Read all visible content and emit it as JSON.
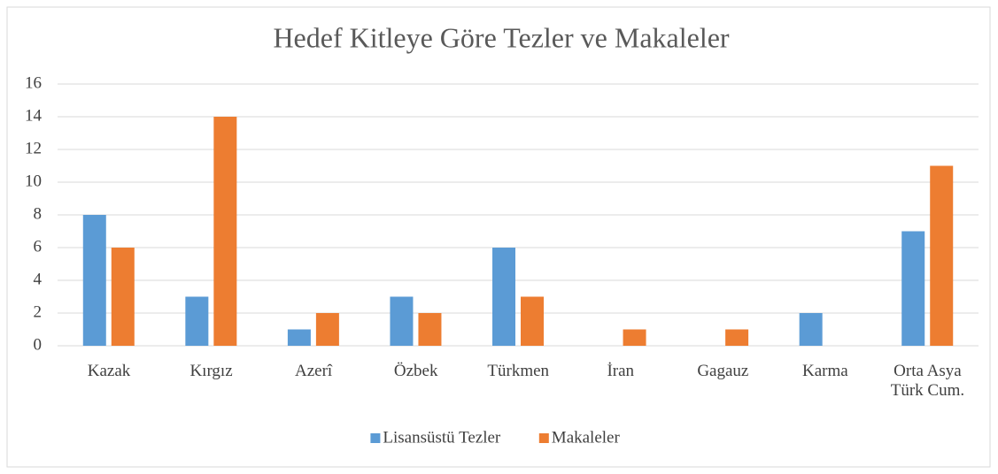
{
  "chart_data": {
    "type": "bar",
    "title": "Hedef Kitleye Göre Tezler ve Makaleler",
    "categories": [
      "Kazak",
      "Kırgız",
      "Azerî",
      "Özbek",
      "Türkmen",
      "İran",
      "Gagauz",
      "Karma",
      "Orta Asya\nTürk Cum."
    ],
    "series": [
      {
        "name": "Lisansüstü Tezler",
        "color": "#5b9bd5",
        "values": [
          8,
          3,
          1,
          3,
          6,
          0,
          0,
          2,
          7
        ]
      },
      {
        "name": "Makaleler",
        "color": "#ed7d31",
        "values": [
          6,
          14,
          2,
          2,
          3,
          1,
          1,
          0,
          11
        ]
      }
    ],
    "ylim": [
      0,
      16
    ],
    "yticks": [
      0,
      2,
      4,
      6,
      8,
      10,
      12,
      14,
      16
    ],
    "grid": true,
    "legend": "bottom"
  }
}
